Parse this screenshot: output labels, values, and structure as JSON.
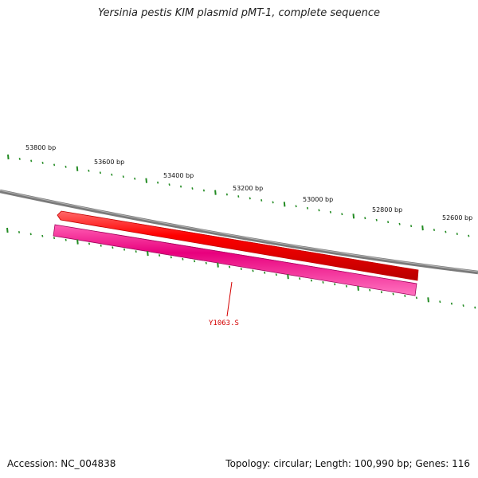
{
  "title": "Yersinia pestis KIM plasmid pMT-1, complete sequence",
  "ruler_labels": [
    "53800 bp",
    "53600 bp",
    "53400 bp",
    "53200 bp",
    "53000 bp",
    "52800 bp",
    "52600 bp"
  ],
  "gene_label": "Y1063.S",
  "footer": {
    "accession": "Accession: NC_004838",
    "summary": "Topology: circular; Length: 100,990 bp; Genes: 116"
  },
  "colors": {
    "forward_feature": "#ff0000",
    "reverse_feature": "#e8007d",
    "ticks": "#228b22",
    "backbone": "#888888",
    "gene_label": "#d40000"
  }
}
